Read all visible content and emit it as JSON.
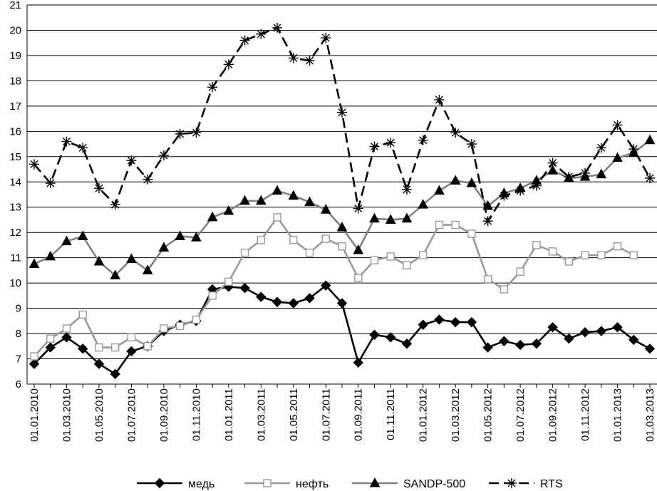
{
  "chart_data": {
    "type": "line",
    "title": "",
    "xlabel": "",
    "ylabel": "",
    "ylim": [
      6,
      21
    ],
    "yticks": [
      "6",
      "7",
      "8",
      "9",
      "10",
      "11",
      "12",
      "13",
      "14",
      "15",
      "16",
      "17",
      "18",
      "19",
      "20",
      "21"
    ],
    "xticks": [
      "01.01.2010",
      "01.03.2010",
      "01.05.2010",
      "01.07.2010",
      "01.09.2010",
      "01.11.2010",
      "01.01.2011",
      "01.03.2011",
      "01.05.2011",
      "01.07.2011",
      "01.09.2011",
      "01.11.2011",
      "01.01.2012",
      "01.03.2012",
      "01.05.2012",
      "01.07.2012",
      "01.09.2012",
      "01.11.2012",
      "01.01.2013",
      "01.03.2013"
    ],
    "grid": "horizontal",
    "legend_position": "bottom",
    "series": [
      {
        "name": "медь",
        "color": "#000000",
        "marker": "diamond",
        "dash": "solid",
        "values": [
          6.8,
          7.45,
          7.85,
          7.4,
          6.8,
          6.4,
          7.3,
          7.5,
          8.1,
          8.35,
          8.5,
          9.75,
          9.85,
          9.8,
          9.45,
          9.25,
          9.2,
          9.4,
          9.9,
          9.2,
          6.85,
          7.95,
          7.85,
          7.6,
          8.35,
          8.55,
          8.45,
          8.45,
          7.45,
          7.7,
          7.55,
          7.6,
          8.25,
          7.8,
          8.05,
          8.1,
          8.25,
          7.75,
          7.4
        ]
      },
      {
        "name": "нефть",
        "color": "#999999",
        "marker": "square-open",
        "dash": "solid",
        "values": [
          7.1,
          7.8,
          8.2,
          8.75,
          7.45,
          7.45,
          7.85,
          7.5,
          8.2,
          8.3,
          8.55,
          9.5,
          10.05,
          11.2,
          11.7,
          12.6,
          11.7,
          11.2,
          11.75,
          11.45,
          10.2,
          10.9,
          11.05,
          10.7,
          11.1,
          12.3,
          12.3,
          11.95,
          10.15,
          9.75,
          10.45,
          11.5,
          11.25,
          10.85,
          11.1,
          11.1,
          11.45,
          11.1
        ]
      },
      {
        "name": "SANDP-500",
        "color": "#808080",
        "marker": "triangle",
        "dash": "solid",
        "values": [
          10.75,
          11.05,
          11.65,
          11.85,
          10.85,
          10.3,
          10.95,
          10.5,
          11.4,
          11.85,
          11.8,
          12.6,
          12.85,
          13.25,
          13.25,
          13.65,
          13.45,
          13.2,
          12.9,
          12.2,
          11.3,
          12.55,
          12.5,
          12.55,
          13.1,
          13.65,
          14.05,
          13.95,
          13.05,
          13.55,
          13.75,
          14.05,
          14.45,
          14.15,
          14.2,
          14.3,
          14.95,
          15.15,
          15.65
        ]
      },
      {
        "name": "RTS",
        "color": "#000000",
        "marker": "star",
        "dash": "dashed",
        "values": [
          14.7,
          13.95,
          15.6,
          15.35,
          13.75,
          13.1,
          14.85,
          14.1,
          15.05,
          15.9,
          15.95,
          17.75,
          18.65,
          19.6,
          19.85,
          20.1,
          18.9,
          18.8,
          19.7,
          16.75,
          12.95,
          15.4,
          15.55,
          13.7,
          15.65,
          17.25,
          15.95,
          15.5,
          12.45,
          13.45,
          13.65,
          13.85,
          14.75,
          14.2,
          14.35,
          15.35,
          16.25,
          15.3,
          14.15
        ]
      }
    ]
  }
}
